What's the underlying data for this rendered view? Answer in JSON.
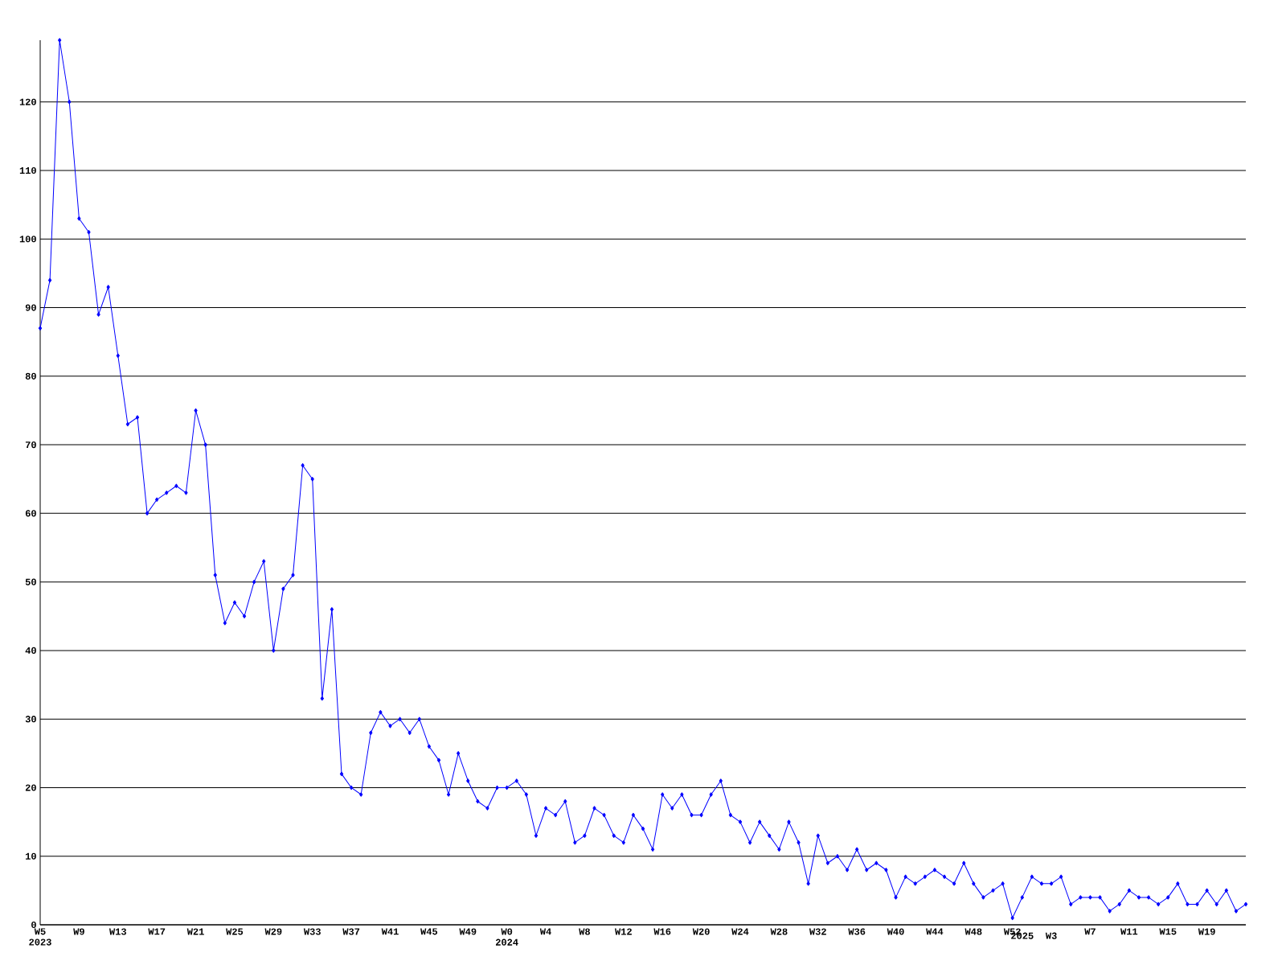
{
  "chart_data": {
    "type": "line",
    "categories": [
      "W5 2023",
      null,
      null,
      null,
      "W9",
      null,
      null,
      null,
      "W13",
      null,
      null,
      null,
      "W17",
      null,
      null,
      null,
      "W21",
      null,
      null,
      null,
      "W25",
      null,
      null,
      null,
      "W29",
      null,
      null,
      null,
      "W33",
      null,
      null,
      null,
      "W37",
      null,
      null,
      null,
      "W41",
      null,
      null,
      null,
      "W45",
      null,
      null,
      null,
      "W49",
      null,
      null,
      null,
      "W0 2024",
      null,
      null,
      null,
      "W4",
      null,
      null,
      null,
      "W8",
      null,
      null,
      null,
      "W12",
      null,
      null,
      null,
      "W16",
      null,
      null,
      null,
      "W20",
      null,
      null,
      null,
      "W24",
      null,
      null,
      null,
      "W28",
      null,
      null,
      null,
      "W32",
      null,
      null,
      null,
      "W36",
      null,
      null,
      null,
      "W40",
      null,
      null,
      null,
      "W44",
      null,
      null,
      null,
      "W48",
      null,
      null,
      null,
      "W52",
      "2025",
      null,
      null,
      "W3",
      null,
      null,
      null,
      "W7",
      null,
      null,
      null,
      "W11",
      null,
      null,
      null,
      "W15",
      null,
      null,
      null,
      "W19",
      null,
      null,
      null,
      null
    ],
    "series": [
      {
        "color": "#0000ff",
        "values": [
          87,
          94,
          129,
          120,
          103,
          101,
          89,
          93,
          83,
          73,
          74,
          60,
          62,
          63,
          64,
          63,
          75,
          70,
          51,
          44,
          47,
          45,
          50,
          53,
          40,
          49,
          51,
          67,
          65,
          33,
          46,
          22,
          20,
          19,
          28,
          31,
          29,
          30,
          28,
          30,
          26,
          24,
          19,
          25,
          21,
          18,
          17,
          20,
          20,
          21,
          19,
          13,
          17,
          16,
          18,
          12,
          13,
          17,
          16,
          13,
          12,
          16,
          14,
          11,
          19,
          17,
          19,
          16,
          16,
          19,
          21,
          16,
          15,
          12,
          15,
          13,
          11,
          15,
          12,
          6,
          13,
          9,
          10,
          8,
          11,
          8,
          9,
          8,
          4,
          7,
          6,
          7,
          8,
          7,
          6,
          9,
          6,
          4,
          5,
          6,
          1,
          4,
          7,
          6,
          6,
          7,
          3,
          4,
          4,
          4,
          2,
          3,
          5,
          4,
          4,
          3,
          4,
          6,
          3,
          3,
          5,
          3,
          5,
          2,
          3
        ]
      }
    ],
    "ylim": [
      0,
      129
    ],
    "yticks": [
      0,
      10,
      20,
      30,
      40,
      50,
      60,
      70,
      80,
      90,
      100,
      110,
      120
    ],
    "grid": "y",
    "marker": "diamond",
    "line_style": "solid"
  }
}
